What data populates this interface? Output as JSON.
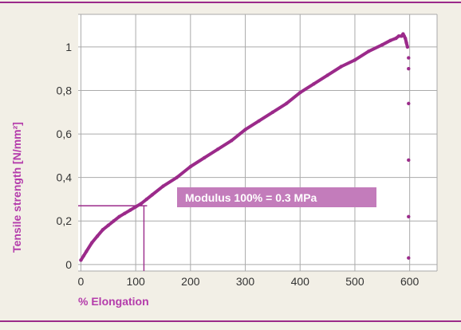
{
  "colors": {
    "background": "#f2efe6",
    "accent": "#9b2a8a",
    "label": "#b43cab",
    "grid": "#aaaaaa",
    "annotation_bg": "#c37cbb"
  },
  "chart_data": {
    "type": "scatter",
    "title": "",
    "xlabel": "% Elongation",
    "ylabel": "Tensile strength [N/mm²]",
    "xlim": [
      -5,
      650
    ],
    "ylim": [
      -0.03,
      1.15
    ],
    "x_ticks": [
      0,
      100,
      200,
      300,
      400,
      500,
      600
    ],
    "y_ticks": [
      0,
      0.2,
      0.4,
      0.6,
      0.8,
      1
    ],
    "y_tick_labels": [
      "0",
      "0,2",
      "0,4",
      "0,6",
      "0,8",
      "1"
    ],
    "grid": true,
    "series": [
      {
        "x": [
          0,
          5,
          10,
          20,
          30,
          40,
          50,
          60,
          70,
          80,
          90,
          100,
          110,
          120,
          130,
          150,
          175,
          200,
          225,
          250,
          275,
          300,
          325,
          350,
          375,
          400,
          425,
          450,
          475,
          500,
          525,
          550,
          565,
          575,
          580,
          585,
          588,
          590,
          592,
          594,
          596,
          598,
          598,
          598,
          598,
          598,
          598
        ],
        "y": [
          0.02,
          0.04,
          0.06,
          0.1,
          0.13,
          0.16,
          0.18,
          0.2,
          0.22,
          0.235,
          0.25,
          0.265,
          0.28,
          0.3,
          0.32,
          0.36,
          0.4,
          0.45,
          0.49,
          0.53,
          0.57,
          0.62,
          0.66,
          0.7,
          0.74,
          0.79,
          0.83,
          0.87,
          0.91,
          0.94,
          0.98,
          1.01,
          1.03,
          1.04,
          1.05,
          1.05,
          1.06,
          1.05,
          1.04,
          1.02,
          1.0,
          0.95,
          0.9,
          0.74,
          0.48,
          0.22,
          0.03
        ]
      }
    ],
    "annotation": {
      "text": "Modulus 100% = 0.3 MPa",
      "x": 115,
      "y": 0.27
    }
  }
}
